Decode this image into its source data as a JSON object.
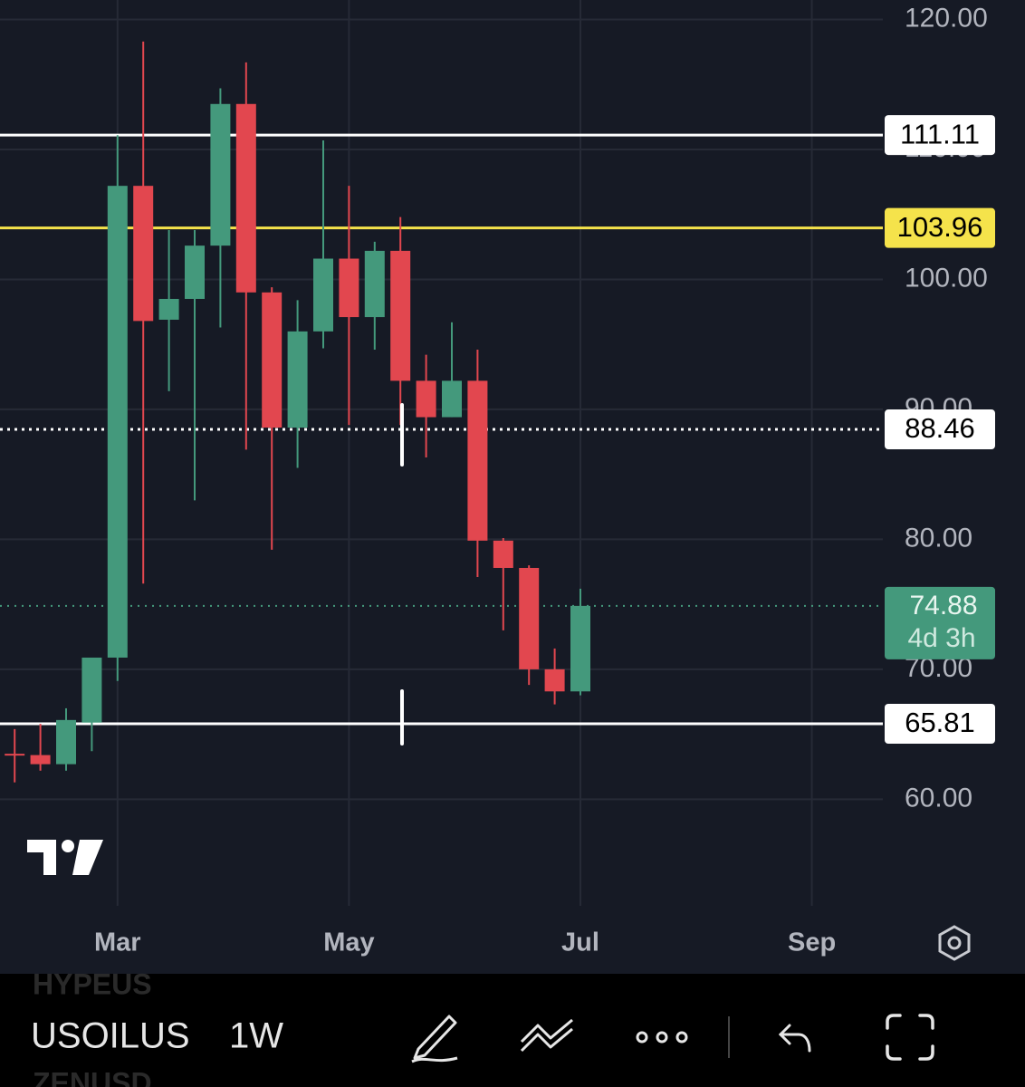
{
  "chart_data": {
    "type": "candlestick",
    "categories": [
      null,
      null,
      null,
      null,
      "Mar",
      null,
      null,
      null,
      null,
      null,
      null,
      null,
      null,
      "May",
      null,
      null,
      null,
      null,
      null,
      null,
      null,
      null,
      "Jul",
      null,
      null,
      null,
      null,
      null,
      null,
      null,
      null,
      "Sep",
      null,
      null
    ],
    "open": [
      63.5,
      63.4,
      62.7,
      65.9,
      70.9,
      107.2,
      96.9,
      98.5,
      102.6,
      113.5,
      99.0,
      88.6,
      96.0,
      101.6,
      97.1,
      102.2,
      92.2,
      89.4,
      92.2,
      79.9,
      77.8,
      70.0,
      68.3,
      null,
      null,
      null,
      null,
      null,
      null,
      null,
      null,
      null,
      null,
      null
    ],
    "high": [
      65.4,
      65.8,
      67.0,
      70.9,
      111.1,
      118.3,
      103.8,
      103.8,
      114.7,
      116.7,
      99.4,
      98.4,
      110.7,
      107.2,
      102.9,
      104.8,
      94.2,
      96.7,
      94.6,
      80.1,
      78.0,
      71.6,
      76.2,
      null,
      null,
      null,
      null,
      null,
      null,
      null,
      null,
      null,
      null,
      null
    ],
    "low": [
      61.3,
      62.2,
      62.2,
      63.7,
      69.1,
      76.6,
      91.4,
      83.0,
      96.3,
      86.9,
      79.2,
      85.5,
      94.7,
      88.8,
      94.6,
      88.8,
      86.3,
      89.4,
      77.1,
      73.0,
      68.8,
      67.3,
      68.0,
      null,
      null,
      null,
      null,
      null,
      null,
      null,
      null,
      null,
      null,
      null
    ],
    "close": [
      63.4,
      62.7,
      66.1,
      70.9,
      107.2,
      96.8,
      98.5,
      102.6,
      113.5,
      99.0,
      88.6,
      96.0,
      101.6,
      97.1,
      102.2,
      92.2,
      89.4,
      92.2,
      79.9,
      77.8,
      70.0,
      68.3,
      74.88,
      null,
      null,
      null,
      null,
      null,
      null,
      null,
      null,
      null,
      null,
      null
    ],
    "up_color": "#44997c",
    "down_color": "#e2474f",
    "ylim": [
      51.8,
      121.5
    ],
    "yticks": [
      {
        "value": 60,
        "label": "60.00"
      },
      {
        "value": 70,
        "label": "70.00"
      },
      {
        "value": 80,
        "label": "80.00"
      },
      {
        "value": 90,
        "label": "90.00"
      },
      {
        "value": 100,
        "label": "100.00"
      },
      {
        "value": 110,
        "label": "110.00"
      },
      {
        "value": 120,
        "label": "120.00"
      }
    ],
    "grid": true,
    "levels": [
      {
        "value": 111.11,
        "color": "#ffffff",
        "style": "solid"
      },
      {
        "value": 103.96,
        "color": "#f5e34b",
        "style": "solid"
      },
      {
        "value": 88.46,
        "color": "#ffffff",
        "style": "dotted"
      },
      {
        "value": 65.81,
        "color": "#ffffff",
        "style": "solid"
      }
    ],
    "last_price": {
      "value": 74.88,
      "countdown": "4d 3h",
      "color": "#44997c"
    }
  },
  "toolbar": {
    "symbol": "USOILUS",
    "interval": "1W",
    "prev_symbol": "HYPEUS",
    "next_symbol": "ZENUSD"
  }
}
